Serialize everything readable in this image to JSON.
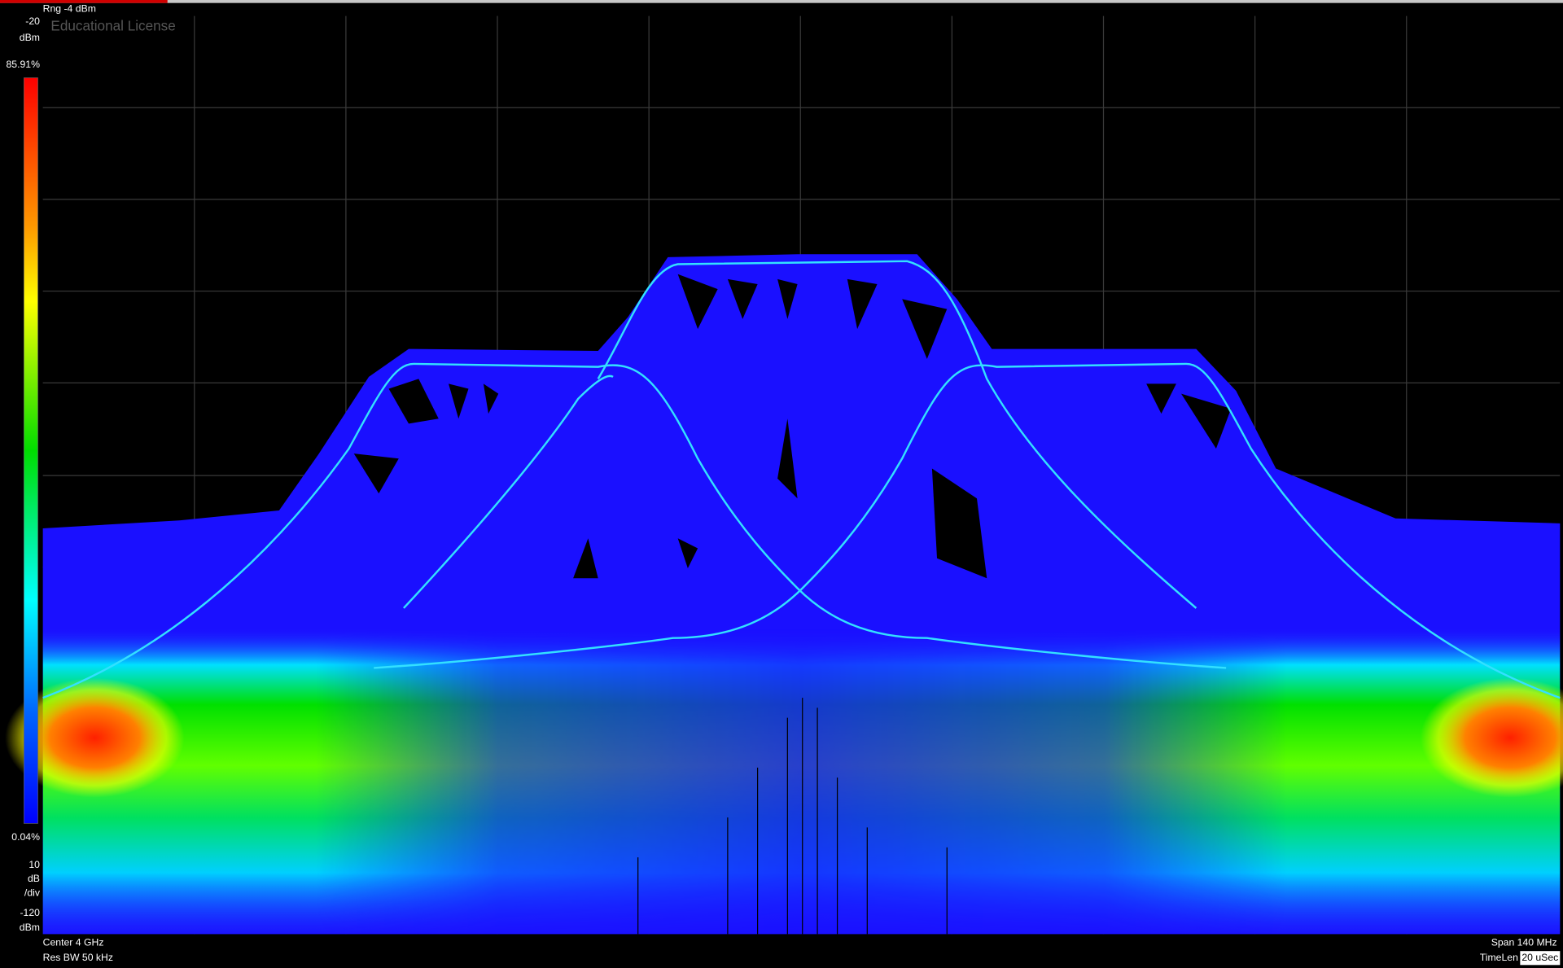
{
  "header": {
    "range": "Rng -4 dBm",
    "license": "Educational License"
  },
  "scale": {
    "top": "-20",
    "top_unit": "dBm",
    "max_density": "85.91%",
    "min_density": "0.04%",
    "div_value": "10",
    "div_unit": "dB",
    "div_suffix": "/div",
    "bottom": "-120",
    "bottom_unit": "dBm"
  },
  "footer": {
    "center": "Center 4 GHz",
    "rbw": "Res BW 50 kHz",
    "span": "Span 140 MHz",
    "timelen_label": "TimeLen",
    "timelen_value": "20 uSec"
  }
}
